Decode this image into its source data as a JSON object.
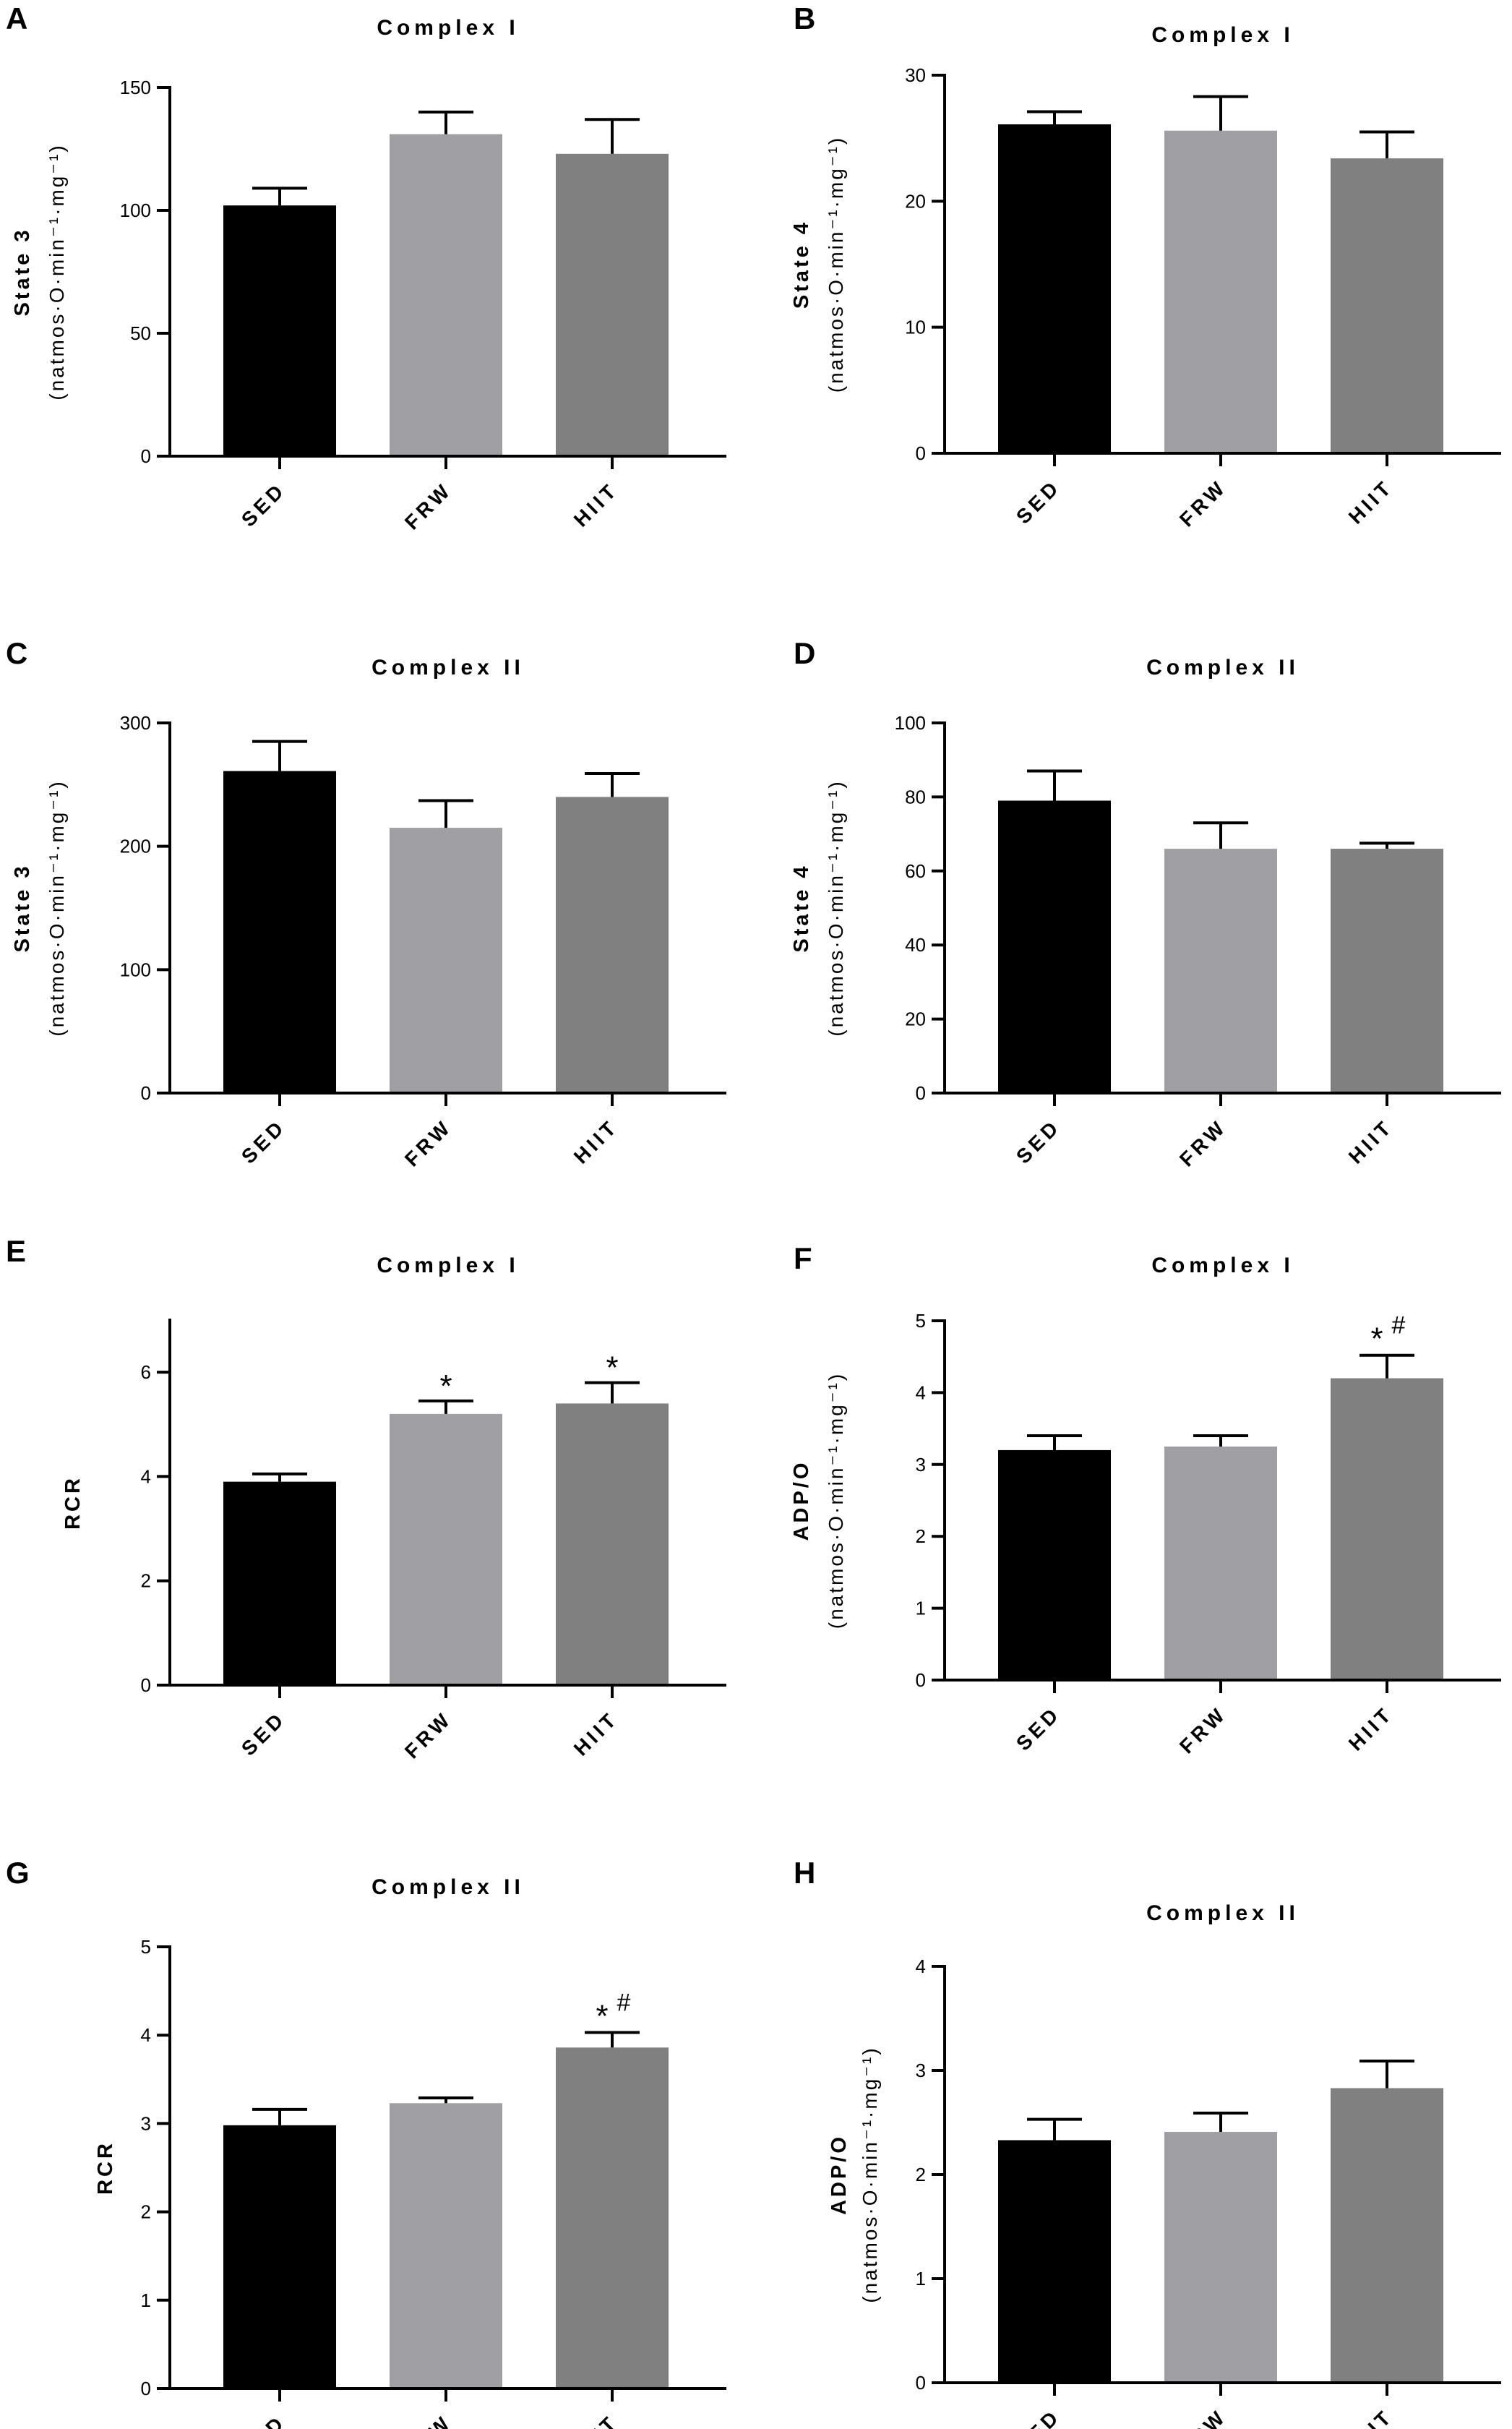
{
  "categories": [
    "SED",
    "FRW",
    "HIIT"
  ],
  "colors": {
    "SED": "#000000",
    "FRW": "#a0a0a4",
    "HIIT": "#808080"
  },
  "chart_data": [
    {
      "type": "bar",
      "panel": "A",
      "title": "Complex I",
      "ylabel": "State 3",
      "ysub": "(natmos·O·min⁻¹·mg⁻¹)",
      "categories": [
        "SED",
        "FRW",
        "HIIT"
      ],
      "values": [
        102,
        131,
        123
      ],
      "errors": [
        7,
        9,
        14
      ],
      "ylim": [
        0,
        150
      ],
      "yticks": [
        0,
        50,
        100,
        150
      ],
      "annotations": [
        "",
        "",
        ""
      ]
    },
    {
      "type": "bar",
      "panel": "B",
      "title": "Complex I",
      "ylabel": "State 4",
      "ysub": "(natmos·O·min⁻¹·mg⁻¹)",
      "categories": [
        "SED",
        "FRW",
        "HIIT"
      ],
      "values": [
        26.1,
        25.6,
        23.4
      ],
      "errors": [
        1,
        2.7,
        2.1
      ],
      "ylim": [
        0,
        30
      ],
      "yticks": [
        0,
        10,
        20,
        30
      ],
      "annotations": [
        "",
        "",
        ""
      ]
    },
    {
      "type": "bar",
      "panel": "C",
      "title": "Complex II",
      "ylabel": "State 3",
      "ysub": "(natmos·O·min⁻¹·mg⁻¹)",
      "categories": [
        "SED",
        "FRW",
        "HIIT"
      ],
      "values": [
        261,
        215,
        240
      ],
      "errors": [
        24,
        22,
        19
      ],
      "ylim": [
        0,
        300
      ],
      "yticks": [
        0,
        100,
        200,
        300
      ],
      "annotations": [
        "",
        "",
        ""
      ]
    },
    {
      "type": "bar",
      "panel": "D",
      "title": "Complex II",
      "ylabel": "State 4",
      "ysub": "(natmos·O·min⁻¹·mg⁻¹)",
      "categories": [
        "SED",
        "FRW",
        "HIIT"
      ],
      "values": [
        79,
        66,
        66
      ],
      "errors": [
        8,
        7,
        1.5
      ],
      "ylim": [
        0,
        100
      ],
      "yticks": [
        0,
        20,
        40,
        60,
        80,
        100
      ],
      "annotations": [
        "",
        "",
        ""
      ]
    },
    {
      "type": "bar",
      "panel": "E",
      "title": "Complex I",
      "ylabel": "RCR",
      "ysub": "",
      "categories": [
        "SED",
        "FRW",
        "HIIT"
      ],
      "values": [
        3.9,
        5.2,
        5.4
      ],
      "errors": [
        0.15,
        0.25,
        0.4
      ],
      "ylim": [
        0,
        7
      ],
      "yticks": [
        0,
        2,
        4,
        6
      ],
      "annotations": [
        "",
        "*",
        "*"
      ]
    },
    {
      "type": "bar",
      "panel": "F",
      "title": "Complex I",
      "ylabel": "ADP/O",
      "ysub": "(natmos·O·min⁻¹·mg⁻¹)",
      "categories": [
        "SED",
        "FRW",
        "HIIT"
      ],
      "values": [
        3.2,
        3.25,
        4.2
      ],
      "errors": [
        0.2,
        0.15,
        0.32
      ],
      "ylim": [
        0,
        5
      ],
      "yticks": [
        0,
        1,
        2,
        3,
        4,
        5
      ],
      "annotations": [
        "",
        "",
        "*#"
      ]
    },
    {
      "type": "bar",
      "panel": "G",
      "title": "Complex II",
      "ylabel": "RCR",
      "ysub": "",
      "categories": [
        "SED",
        "FRW",
        "HIIT"
      ],
      "values": [
        2.98,
        3.23,
        3.86
      ],
      "errors": [
        0.18,
        0.06,
        0.17
      ],
      "ylim": [
        0,
        5
      ],
      "yticks": [
        0,
        1,
        2,
        3,
        4,
        5
      ],
      "annotations": [
        "",
        "",
        "*#"
      ]
    },
    {
      "type": "bar",
      "panel": "H",
      "title": "Complex II",
      "ylabel": "ADP/O",
      "ysub": "(natmos·O·min⁻¹·mg⁻¹)",
      "categories": [
        "SED",
        "FRW",
        "HIIT"
      ],
      "values": [
        2.33,
        2.41,
        2.83
      ],
      "errors": [
        0.2,
        0.18,
        0.26
      ],
      "ylim": [
        0,
        4
      ],
      "yticks": [
        0,
        1,
        2,
        3,
        4
      ],
      "annotations": [
        "",
        "",
        ""
      ]
    }
  ]
}
